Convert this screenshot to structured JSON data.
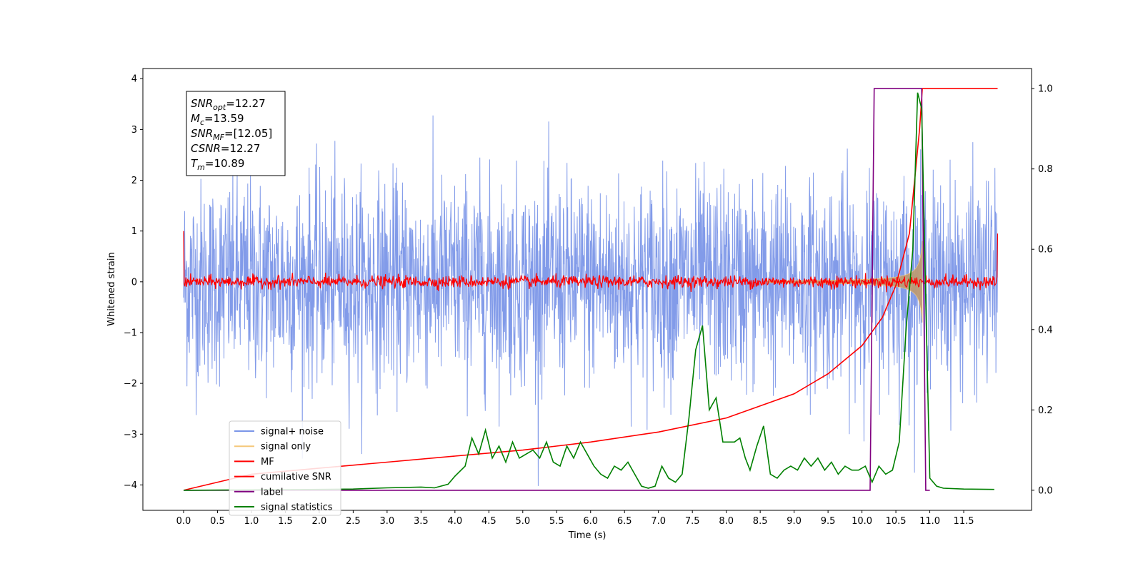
{
  "chart_data": {
    "type": "line",
    "xlabel": "Time (s)",
    "ylabel": "Whitened strain",
    "x_ticks": [
      "0.0",
      "0.5",
      "1.0",
      "1.5",
      "2.0",
      "2.5",
      "3.0",
      "3.5",
      "4.0",
      "4.5",
      "5.0",
      "5.5",
      "6.0",
      "6.5",
      "7.0",
      "7.5",
      "8.0",
      "8.5",
      "9.0",
      "9.5",
      "10.0",
      "10.5",
      "11.0",
      "11.5"
    ],
    "xlim": [
      -0.6,
      12.5
    ],
    "ylim_left": [
      -4.5,
      4.2
    ],
    "ylim_right": [
      -0.05,
      1.05
    ],
    "y_ticks_left": [
      "4",
      "3",
      "2",
      "1",
      "0",
      "−1",
      "−2",
      "−3",
      "−4"
    ],
    "y_ticks_right": [
      "1.0",
      "0.8",
      "0.6",
      "0.4",
      "0.2",
      "0.0"
    ],
    "annotations": [
      {
        "id": "snr_opt",
        "var": "SNR",
        "sub": "opt",
        "value": "=12.27"
      },
      {
        "id": "mc",
        "var": "M",
        "sub": "c",
        "value": "=13.59"
      },
      {
        "id": "snr_mf",
        "var": "SNR",
        "sub": "MF",
        "value": "=[12.05]"
      },
      {
        "id": "csnr",
        "var": "CSNR",
        "sub": "",
        "value": "=12.27"
      },
      {
        "id": "tm",
        "var": "T",
        "sub": "m",
        "value": "=10.89"
      }
    ],
    "legend": [
      {
        "label": "signal+ noise",
        "color": "#7b96e8"
      },
      {
        "label": "signal only",
        "color": "#f5c87a"
      },
      {
        "label": "MF",
        "color": "#ff0000"
      },
      {
        "label": "cumilative SNR",
        "color": "#ff0000"
      },
      {
        "label": "label",
        "color": "#800080"
      },
      {
        "label": "signal statistics",
        "color": "#008000"
      }
    ],
    "series": [
      {
        "name": "signal+ noise",
        "axis": "left",
        "color": "#7b96e8",
        "x_range": [
          0.0,
          12.0
        ],
        "band_sigma": 1.0,
        "spike_max": 3.8,
        "spike_min": -4.15
      },
      {
        "name": "signal only",
        "axis": "left",
        "color": "#f5c87a",
        "chirp_end": 10.89,
        "amplitude_max": 0.8
      },
      {
        "name": "MF",
        "axis": "left",
        "color": "#ff0000",
        "x_range": [
          0.0,
          12.0
        ],
        "noise_amp": 0.1,
        "edge_values": [
          1.0,
          0.95
        ]
      },
      {
        "name": "cumilative SNR",
        "axis": "right",
        "color": "#ff0000",
        "x": [
          0.0,
          1.0,
          2.0,
          3.0,
          4.0,
          5.0,
          6.0,
          7.0,
          8.0,
          9.0,
          9.5,
          10.0,
          10.3,
          10.5,
          10.7,
          10.85,
          10.89,
          12.0
        ],
        "y": [
          0.0,
          0.04,
          0.055,
          0.07,
          0.085,
          0.1,
          0.12,
          0.145,
          0.18,
          0.24,
          0.29,
          0.36,
          0.43,
          0.51,
          0.64,
          0.9,
          1.0,
          1.0
        ]
      },
      {
        "name": "label",
        "axis": "right",
        "color": "#800080",
        "x": [
          0.0,
          10.12,
          10.18,
          10.88,
          10.94,
          11.0
        ],
        "y": [
          0.0,
          0.0,
          1.0,
          1.0,
          0.0,
          0.0
        ]
      },
      {
        "name": "signal statistics",
        "axis": "right",
        "color": "#008000",
        "x": [
          0.0,
          1.0,
          2.0,
          2.5,
          3.0,
          3.5,
          3.7,
          3.9,
          4.0,
          4.15,
          4.25,
          4.35,
          4.45,
          4.55,
          4.65,
          4.75,
          4.85,
          4.95,
          5.05,
          5.15,
          5.25,
          5.35,
          5.45,
          5.55,
          5.65,
          5.75,
          5.85,
          5.95,
          6.05,
          6.15,
          6.25,
          6.35,
          6.45,
          6.55,
          6.65,
          6.75,
          6.85,
          6.95,
          7.05,
          7.15,
          7.25,
          7.35,
          7.45,
          7.55,
          7.65,
          7.75,
          7.85,
          7.95,
          8.05,
          8.12,
          8.2,
          8.28,
          8.35,
          8.45,
          8.55,
          8.65,
          8.75,
          8.85,
          8.95,
          9.05,
          9.15,
          9.25,
          9.35,
          9.45,
          9.55,
          9.65,
          9.75,
          9.85,
          9.95,
          10.05,
          10.15,
          10.25,
          10.35,
          10.45,
          10.55,
          10.65,
          10.75,
          10.82,
          10.88,
          10.95,
          11.0,
          11.1,
          11.2,
          11.5,
          11.95
        ],
        "y": [
          0.0,
          0.001,
          0.002,
          0.003,
          0.006,
          0.008,
          0.006,
          0.015,
          0.035,
          0.06,
          0.13,
          0.09,
          0.15,
          0.08,
          0.11,
          0.07,
          0.12,
          0.08,
          0.09,
          0.1,
          0.08,
          0.12,
          0.07,
          0.06,
          0.11,
          0.08,
          0.12,
          0.09,
          0.06,
          0.04,
          0.03,
          0.06,
          0.05,
          0.07,
          0.04,
          0.01,
          0.005,
          0.01,
          0.06,
          0.03,
          0.02,
          0.04,
          0.18,
          0.35,
          0.41,
          0.2,
          0.23,
          0.12,
          0.12,
          0.12,
          0.13,
          0.08,
          0.05,
          0.11,
          0.16,
          0.04,
          0.03,
          0.05,
          0.06,
          0.05,
          0.08,
          0.06,
          0.08,
          0.05,
          0.07,
          0.04,
          0.06,
          0.05,
          0.05,
          0.06,
          0.02,
          0.06,
          0.04,
          0.05,
          0.12,
          0.4,
          0.6,
          0.99,
          0.95,
          0.4,
          0.03,
          0.01,
          0.005,
          0.003,
          0.002
        ]
      }
    ]
  }
}
